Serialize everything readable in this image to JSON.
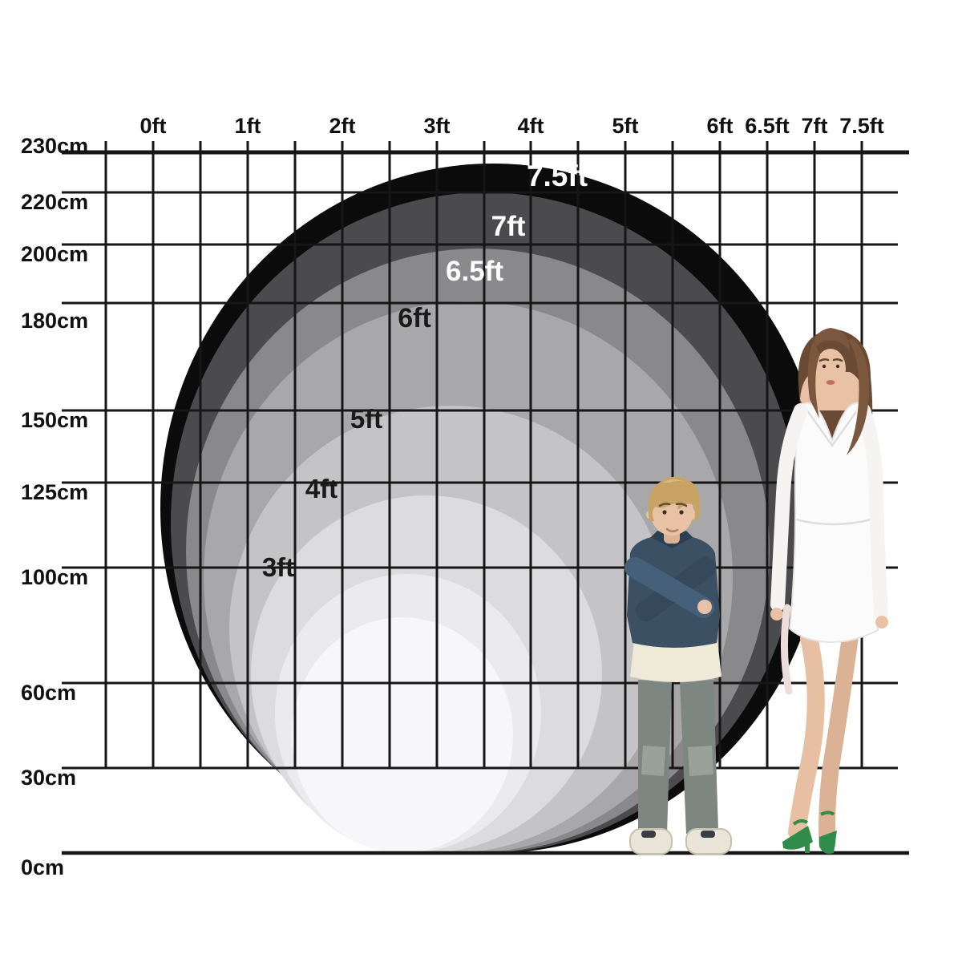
{
  "chart_data": {
    "type": "other",
    "subtype": "concentric_circle_size_comparison_chart",
    "description": "Size chart showing nested circles for round item diameters from 3ft to 7.5ft on a feet/centimeter grid, with a boy and a woman standing at right for human scale.",
    "x_axis": {
      "position": "top",
      "unit": "ft",
      "tick_labels": [
        "0ft",
        "1ft",
        "2ft",
        "3ft",
        "4ft",
        "5ft",
        "6ft",
        "6.5ft",
        "7ft",
        "7.5ft"
      ],
      "range_ft": [
        0,
        7.5
      ],
      "gridline_step_ft": 0.5
    },
    "y_axis": {
      "position": "left",
      "unit": "cm",
      "tick_labels": [
        "230cm",
        "220cm",
        "200cm",
        "180cm",
        "150cm",
        "125cm",
        "100cm",
        "60cm",
        "30cm",
        "0cm"
      ]
    },
    "grid": true,
    "circles": [
      {
        "label": "7.5ft",
        "diameter_ft": 7.5,
        "fill": "#0b0b0b",
        "label_color": "#ffffff"
      },
      {
        "label": "7ft",
        "diameter_ft": 7.0,
        "fill": "#4b4b4e",
        "label_color": "#ffffff"
      },
      {
        "label": "6.5ft",
        "diameter_ft": 6.5,
        "fill": "#89898c",
        "label_color": "#ffffff"
      },
      {
        "label": "6ft",
        "diameter_ft": 6.0,
        "fill": "#a8a8aa",
        "label_color": "#1a1a1a"
      },
      {
        "label": "5ft",
        "diameter_ft": 5.0,
        "fill": "#c4c4c6",
        "label_color": "#1a1a1a"
      },
      {
        "label": "4ft",
        "diameter_ft": 4.0,
        "fill": "#dcdcde",
        "label_color": "#1a1a1a"
      },
      {
        "label": "3ft",
        "diameter_ft": 3.0,
        "fill": "#ebebed",
        "label_color": "#1a1a1a"
      },
      {
        "label": "",
        "diameter_ft": null,
        "fill": "#f7f7f9",
        "label_color": ""
      }
    ],
    "figures": [
      {
        "name": "boy",
        "description": "young blond boy with arms crossed wearing a dark denim jacket, cream shirt, gray jeans and white sneakers"
      },
      {
        "name": "woman",
        "description": "brown-haired woman in a white off-shoulder long-sleeve mini dress with green strappy heels"
      }
    ],
    "colors": {
      "grid": "#161616",
      "background": "#ffffff",
      "axis_text": "#111111",
      "heels_green": "#2f8c4a"
    }
  }
}
